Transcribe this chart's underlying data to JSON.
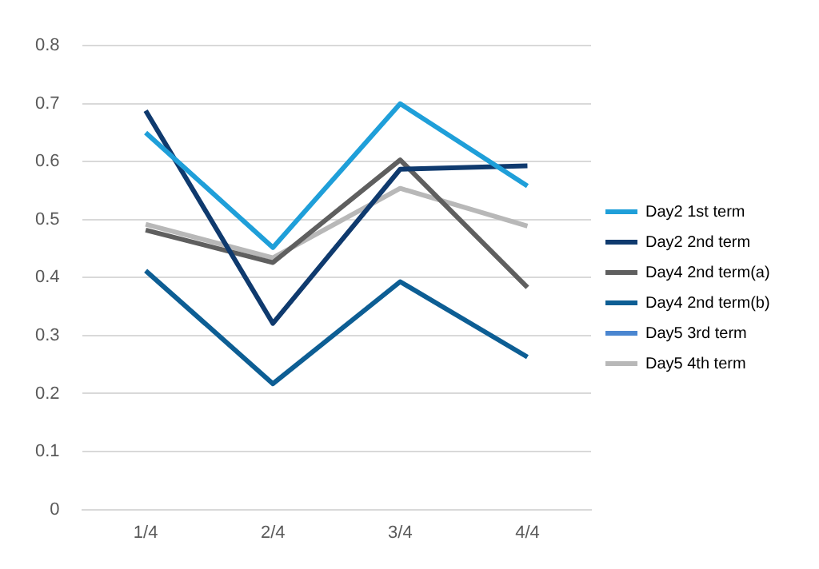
{
  "chart_data": {
    "type": "line",
    "categories": [
      "1/4",
      "2/4",
      "3/4",
      "4/4"
    ],
    "series": [
      {
        "name": "Day2 1st term",
        "color": "#1f9fd9",
        "values": [
          0.65,
          0.452,
          0.7,
          0.558
        ]
      },
      {
        "name": "Day2 2nd term",
        "color": "#0f3a6e",
        "values": [
          0.688,
          0.321,
          0.587,
          0.593
        ]
      },
      {
        "name": "Day4 2nd term(a)",
        "color": "#5f5f5f",
        "values": [
          0.482,
          0.426,
          0.603,
          0.383
        ]
      },
      {
        "name": "Day4 2nd term(b)",
        "color": "#0d5e94",
        "values": [
          0.412,
          0.217,
          0.393,
          0.263
        ]
      },
      {
        "name": "Day5 3rd term",
        "color": "#4a86d0",
        "values": [
          null,
          null,
          null,
          null
        ]
      },
      {
        "name": "Day5 4th term",
        "color": "#b8b8b8",
        "values": [
          0.492,
          0.434,
          0.554,
          0.489
        ]
      }
    ],
    "ylim": [
      0,
      0.8
    ],
    "yticks": [
      0,
      0.1,
      0.2,
      0.3,
      0.4,
      0.5,
      0.6,
      0.7,
      0.8
    ],
    "grid": "y",
    "legend": "right",
    "marker": "none",
    "line_style": "solid"
  }
}
